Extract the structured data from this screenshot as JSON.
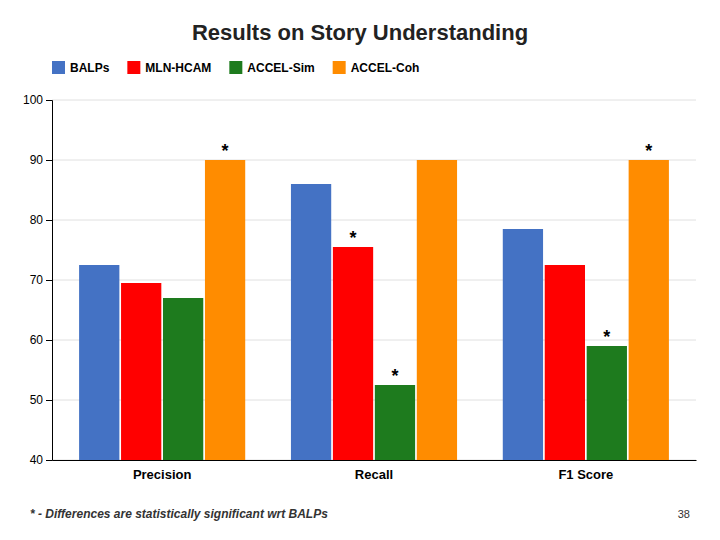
{
  "chart_data": {
    "type": "bar",
    "title": "Results on Story Understanding",
    "categories": [
      "Precision",
      "Recall",
      "F1 Score"
    ],
    "series": [
      {
        "name": "BALPs",
        "color": "#4472C4",
        "values": [
          72.5,
          86.0,
          78.5
        ]
      },
      {
        "name": "MLN-HCAM",
        "color": "#FF0000",
        "values": [
          69.5,
          75.5,
          72.5
        ]
      },
      {
        "name": "ACCEL-Sim",
        "color": "#1E7B1E",
        "values": [
          67.0,
          52.5,
          59.0
        ]
      },
      {
        "name": "ACCEL-Coh",
        "color": "#FF8C00",
        "values": [
          90.0,
          90.0,
          90.0
        ]
      }
    ],
    "ylim": [
      40,
      100
    ],
    "yticks": [
      40,
      50,
      60,
      70,
      80,
      90,
      100
    ],
    "grid": true,
    "legend": "top",
    "annotations": [
      {
        "text": "*",
        "category": "Precision",
        "series": "ACCEL-Coh"
      },
      {
        "text": "*",
        "category": "Recall",
        "series": "MLN-HCAM"
      },
      {
        "text": "*",
        "category": "Recall",
        "series": "ACCEL-Sim"
      },
      {
        "text": "*",
        "category": "F1 Score",
        "series": "ACCEL-Sim"
      },
      {
        "text": "*",
        "category": "F1 Score",
        "series": "ACCEL-Coh"
      }
    ],
    "footnote": "* - Differences are statistically significant wrt BALPs",
    "page_number": "38"
  }
}
